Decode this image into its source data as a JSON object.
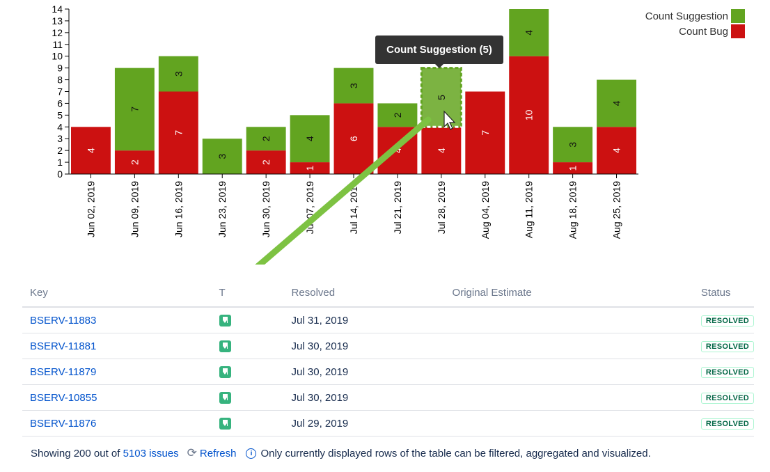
{
  "chart_data": {
    "type": "bar",
    "stacked": true,
    "categories": [
      "Jun 02, 2019",
      "Jun 09, 2019",
      "Jun 16, 2019",
      "Jun 23, 2019",
      "Jun 30, 2019",
      "Jul 07, 2019",
      "Jul 14, 2019",
      "Jul 21, 2019",
      "Jul 28, 2019",
      "Aug 04, 2019",
      "Aug 11, 2019",
      "Aug 18, 2019",
      "Aug 25, 2019"
    ],
    "series": [
      {
        "name": "Count Bug",
        "color": "#cc1111",
        "values": [
          4,
          2,
          7,
          0,
          2,
          1,
          6,
          4,
          4,
          7,
          10,
          1,
          4
        ]
      },
      {
        "name": "Count Suggestion",
        "color": "#62a420",
        "values": [
          0,
          7,
          3,
          3,
          2,
          4,
          3,
          2,
          5,
          0,
          4,
          3,
          4
        ]
      }
    ],
    "ylim": [
      0,
      14
    ],
    "yticks": [
      0,
      1,
      2,
      3,
      4,
      5,
      6,
      7,
      8,
      9,
      10,
      11,
      12,
      13,
      14
    ],
    "legend_position": "top-right",
    "highlight": {
      "series": "Count Suggestion",
      "category": "Jul 28, 2019"
    }
  },
  "legend": {
    "items": [
      {
        "label": "Count Suggestion",
        "color": "#62a420"
      },
      {
        "label": "Count Bug",
        "color": "#cc1111"
      }
    ]
  },
  "tooltip": {
    "text": "Count Suggestion (5)"
  },
  "table": {
    "headers": {
      "key": "Key",
      "type": "T",
      "resolved": "Resolved",
      "estimate": "Original Estimate",
      "status": "Status"
    },
    "rows": [
      {
        "key": "BSERV-11883",
        "resolved": "Jul 31, 2019",
        "estimate": "",
        "status": "RESOLVED",
        "type_icon": "story-icon"
      },
      {
        "key": "BSERV-11881",
        "resolved": "Jul 30, 2019",
        "estimate": "",
        "status": "RESOLVED",
        "type_icon": "story-icon"
      },
      {
        "key": "BSERV-11879",
        "resolved": "Jul 30, 2019",
        "estimate": "",
        "status": "RESOLVED",
        "type_icon": "story-icon"
      },
      {
        "key": "BSERV-10855",
        "resolved": "Jul 30, 2019",
        "estimate": "",
        "status": "RESOLVED",
        "type_icon": "story-icon"
      },
      {
        "key": "BSERV-11876",
        "resolved": "Jul 29, 2019",
        "estimate": "",
        "status": "RESOLVED",
        "type_icon": "story-icon"
      }
    ]
  },
  "footer": {
    "showing_prefix": "Showing 200 out of",
    "issues_link": "5103 issues",
    "refresh_label": "Refresh",
    "info_text": "Only currently displayed rows of the table can be filtered, aggregated and visualized."
  }
}
